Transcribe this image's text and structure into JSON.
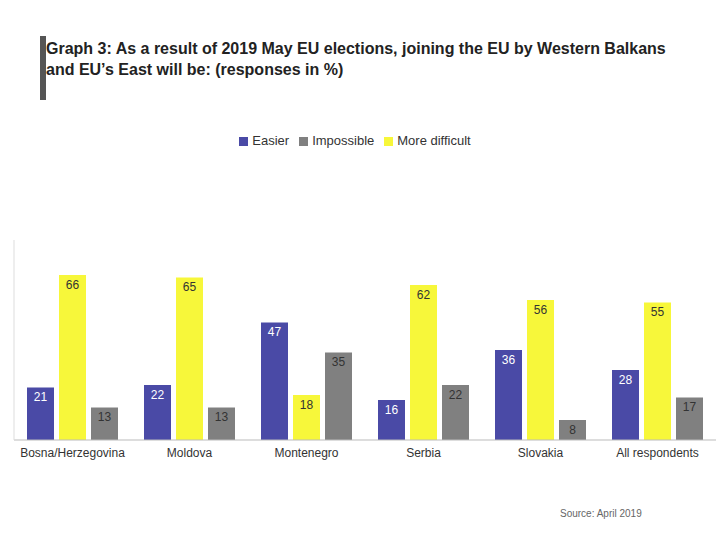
{
  "chart_data": {
    "type": "bar",
    "title": "Graph 3: As a result of 2019 May EU elections, joining the EU by Western Balkans and EU’s East will be: (responses in %)",
    "categories": [
      "Bosna/Herzegovina",
      "Moldova",
      "Montenegro",
      "Serbia",
      "Slovakia",
      "All respondents"
    ],
    "series": [
      {
        "name": "Easier",
        "color": "#4a4aa6",
        "values": [
          21,
          22,
          47,
          16,
          36,
          28
        ]
      },
      {
        "name": "More difficult",
        "color": "#f7f73a",
        "values": [
          66,
          65,
          18,
          62,
          56,
          55
        ]
      },
      {
        "name": "Impossible",
        "color": "#808080",
        "values": [
          13,
          13,
          35,
          22,
          8,
          17
        ]
      }
    ],
    "ylim": [
      0,
      80
    ],
    "tick_labels": "x",
    "grid": false,
    "legend": "top",
    "data_labels": true,
    "annotations": [
      "Source: April 2019"
    ]
  }
}
